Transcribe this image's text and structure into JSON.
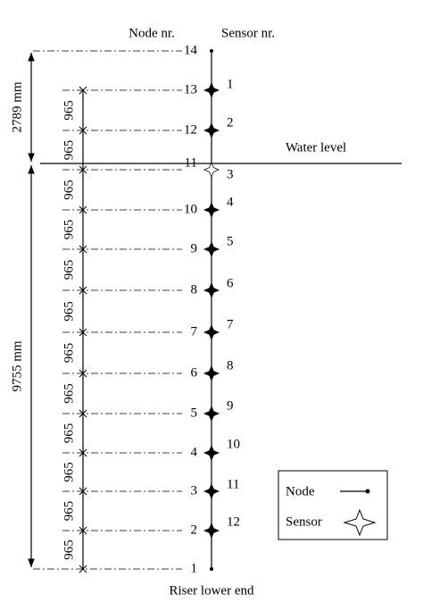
{
  "header": {
    "node_heading": "Node nr.",
    "sensor_heading": "Sensor nr."
  },
  "nodes": [
    {
      "label": "14"
    },
    {
      "label": "13"
    },
    {
      "label": "12"
    },
    {
      "label": "11"
    },
    {
      "label": "10"
    },
    {
      "label": "9"
    },
    {
      "label": "8"
    },
    {
      "label": "7"
    },
    {
      "label": "6"
    },
    {
      "label": "5"
    },
    {
      "label": "4"
    },
    {
      "label": "3"
    },
    {
      "label": "2"
    },
    {
      "label": "1"
    }
  ],
  "sensors": [
    {
      "label": "1"
    },
    {
      "label": "2"
    },
    {
      "label": "3"
    },
    {
      "label": "4"
    },
    {
      "label": "5"
    },
    {
      "label": "6"
    },
    {
      "label": "7"
    },
    {
      "label": "8"
    },
    {
      "label": "9"
    },
    {
      "label": "10"
    },
    {
      "label": "11"
    },
    {
      "label": "12"
    }
  ],
  "water_level": "Water level",
  "dimensions": {
    "upper": "2789 mm",
    "lower": "9755 mm",
    "spacing": [
      "965",
      "965",
      "965",
      "965",
      "965",
      "965",
      "965",
      "965",
      "965",
      "965",
      "965",
      "965"
    ]
  },
  "footer": "Riser lower end",
  "legend": {
    "node": "Node",
    "sensor": "Sensor"
  }
}
